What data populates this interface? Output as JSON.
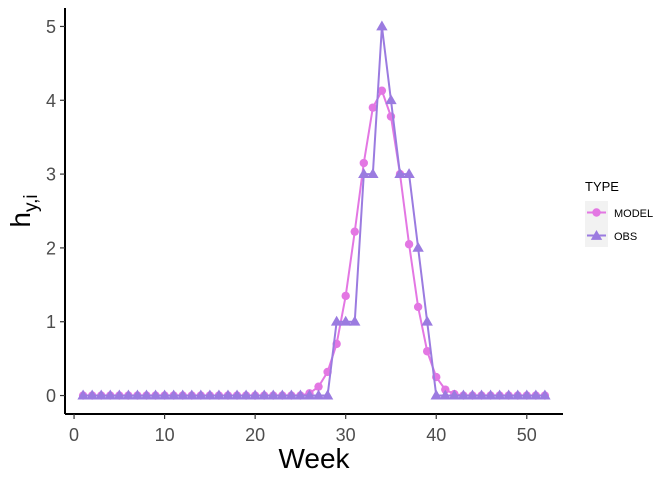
{
  "chart_data": {
    "type": "line",
    "xlabel": "Week",
    "ylabel": {
      "main": "h",
      "subscript": "y,i"
    },
    "xlim": [
      -1,
      54
    ],
    "ylim": [
      -0.25,
      5.25
    ],
    "xticks": [
      0,
      10,
      20,
      30,
      40,
      50
    ],
    "yticks": [
      0,
      1,
      2,
      3,
      4,
      5
    ],
    "grid": false,
    "legend": {
      "title": "TYPE",
      "position": "right"
    },
    "x": [
      1,
      2,
      3,
      4,
      5,
      6,
      7,
      8,
      9,
      10,
      11,
      12,
      13,
      14,
      15,
      16,
      17,
      18,
      19,
      20,
      21,
      22,
      23,
      24,
      25,
      26,
      27,
      28,
      29,
      30,
      31,
      32,
      33,
      34,
      35,
      36,
      37,
      38,
      39,
      40,
      41,
      42,
      43,
      44,
      45,
      46,
      47,
      48,
      49,
      50,
      51,
      52
    ],
    "series": [
      {
        "name": "MODEL",
        "color": "#e377e3",
        "marker": "circle",
        "values": [
          0,
          0,
          0,
          0,
          0,
          0,
          0,
          0,
          0,
          0,
          0,
          0,
          0,
          0,
          0,
          0,
          0,
          0,
          0,
          0,
          0,
          0,
          0,
          0,
          0,
          0.03,
          0.12,
          0.32,
          0.7,
          1.35,
          2.22,
          3.15,
          3.9,
          4.13,
          3.78,
          3.0,
          2.05,
          1.2,
          0.6,
          0.25,
          0.08,
          0.02,
          0,
          0,
          0,
          0,
          0,
          0,
          0,
          0,
          0,
          0
        ]
      },
      {
        "name": "OBS",
        "color": "#9b7be0",
        "marker": "triangle",
        "values": [
          0,
          0,
          0,
          0,
          0,
          0,
          0,
          0,
          0,
          0,
          0,
          0,
          0,
          0,
          0,
          0,
          0,
          0,
          0,
          0,
          0,
          0,
          0,
          0,
          0,
          0,
          0,
          0,
          1,
          1,
          1,
          3,
          3,
          5,
          4,
          3,
          3,
          2,
          1,
          0,
          0,
          0,
          0,
          0,
          0,
          0,
          0,
          0,
          0,
          0,
          0,
          0
        ]
      }
    ]
  }
}
